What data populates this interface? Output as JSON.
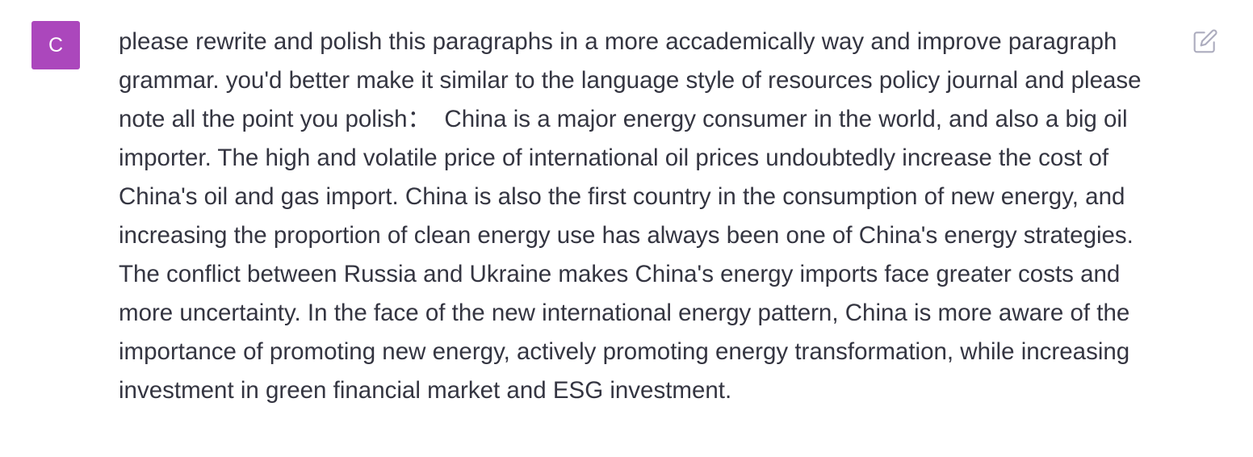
{
  "user": {
    "avatar_letter": "C",
    "avatar_color": "#ab47bc"
  },
  "message": {
    "text": "please rewrite and polish this paragraphs in a more accademically way and improve paragraph grammar. you'd better make it similar to the language style of resources policy journal and please note all the point you polish：  China is a major energy consumer in the world, and also a big oil importer. The high and volatile price of international oil prices undoubtedly increase the cost of China's oil and gas import. China is also the first country in the consumption of new energy, and increasing the proportion of clean energy use has always been one of China's energy strategies. The conflict between Russia and Ukraine makes China's energy imports face greater costs and more uncertainty. In the face of the new international energy pattern, China is more aware of the importance of promoting new energy, actively promoting energy transformation, while increasing investment in green financial market and ESG investment."
  },
  "actions": {
    "edit_icon": "edit-icon",
    "edit_icon_color": "#acacbe"
  }
}
